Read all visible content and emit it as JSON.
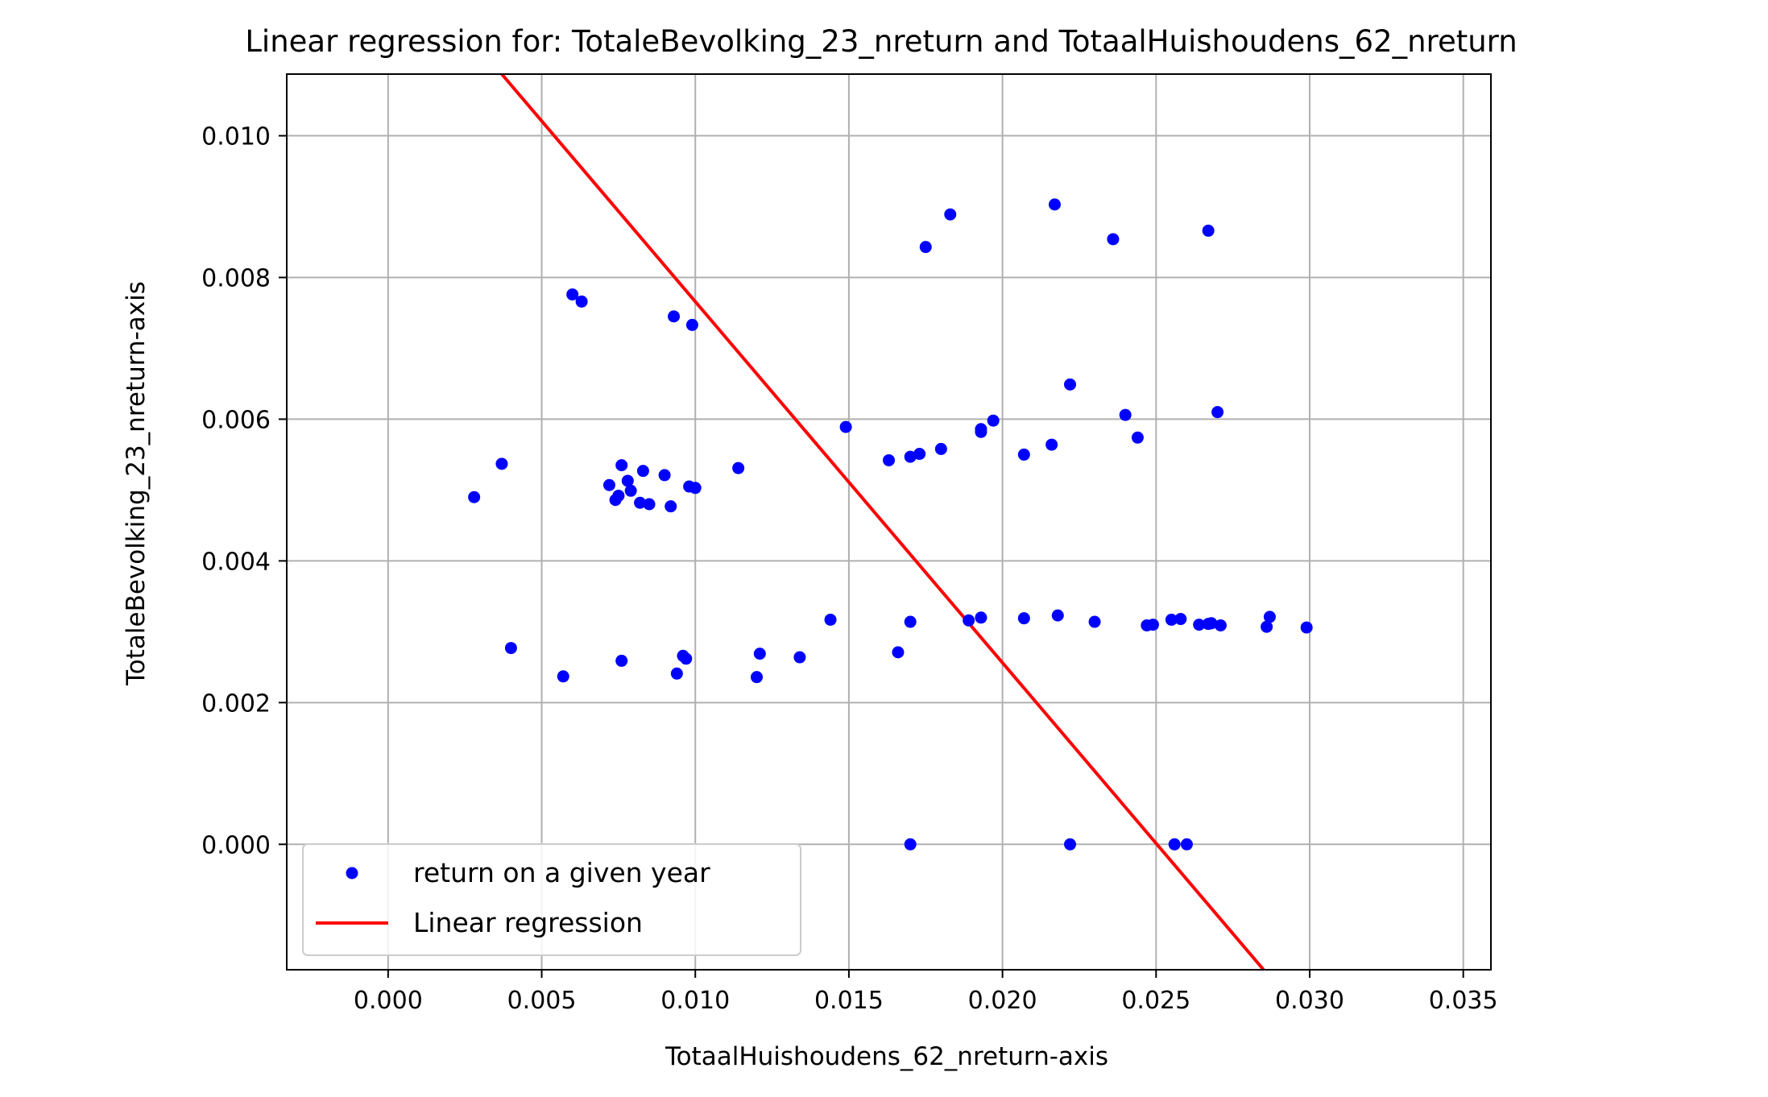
{
  "chart_data": {
    "type": "scatter",
    "title": "Linear regression for: TotaleBevolking_23_nreturn and TotaalHuishoudens_62_nreturn",
    "xlabel": "TotaalHuishoudens_62_nreturn-axis",
    "ylabel": "TotaleBevolking_23_nreturn-axis",
    "xlim": [
      -0.0033,
      0.0359
    ],
    "ylim": [
      -0.00177,
      0.01087
    ],
    "xticks": [
      0.0,
      0.005,
      0.01,
      0.015,
      0.02,
      0.025,
      0.03,
      0.035
    ],
    "xtick_labels": [
      "0.000",
      "0.005",
      "0.010",
      "0.015",
      "0.020",
      "0.025",
      "0.030",
      "0.035"
    ],
    "yticks": [
      0.0,
      0.002,
      0.004,
      0.006,
      0.008,
      0.01
    ],
    "ytick_labels": [
      "0.000",
      "0.002",
      "0.004",
      "0.006",
      "0.008",
      "0.010"
    ],
    "grid": true,
    "legend_position": "lower-left",
    "series": [
      {
        "name": "return on a given year",
        "kind": "scatter",
        "color": "#0000ff",
        "points": [
          [
            0.0028,
            0.0049
          ],
          [
            0.0037,
            0.00537
          ],
          [
            0.004,
            0.00277
          ],
          [
            0.0057,
            0.00237
          ],
          [
            0.006,
            0.00776
          ],
          [
            0.0063,
            0.00766
          ],
          [
            0.0072,
            0.00507
          ],
          [
            0.0074,
            0.00486
          ],
          [
            0.0075,
            0.00492
          ],
          [
            0.0076,
            0.00535
          ],
          [
            0.0076,
            0.00259
          ],
          [
            0.0078,
            0.00513
          ],
          [
            0.0079,
            0.00499
          ],
          [
            0.0082,
            0.00482
          ],
          [
            0.0083,
            0.00527
          ],
          [
            0.0085,
            0.0048
          ],
          [
            0.009,
            0.00521
          ],
          [
            0.0092,
            0.00477
          ],
          [
            0.0093,
            0.00745
          ],
          [
            0.0094,
            0.00241
          ],
          [
            0.0096,
            0.00266
          ],
          [
            0.0097,
            0.00262
          ],
          [
            0.0098,
            0.00505
          ],
          [
            0.0099,
            0.00733
          ],
          [
            0.01,
            0.00503
          ],
          [
            0.0114,
            0.00531
          ],
          [
            0.012,
            0.00236
          ],
          [
            0.0121,
            0.00269
          ],
          [
            0.0134,
            0.00264
          ],
          [
            0.0144,
            0.00317
          ],
          [
            0.0149,
            0.00589
          ],
          [
            0.0163,
            0.00542
          ],
          [
            0.0166,
            0.00271
          ],
          [
            0.017,
            0.00547
          ],
          [
            0.017,
            0.00314
          ],
          [
            0.017,
            0.0
          ],
          [
            0.0173,
            0.00551
          ],
          [
            0.0175,
            0.00843
          ],
          [
            0.018,
            0.00558
          ],
          [
            0.0183,
            0.00889
          ],
          [
            0.0189,
            0.00316
          ],
          [
            0.0193,
            0.00586
          ],
          [
            0.0193,
            0.00582
          ],
          [
            0.0193,
            0.0032
          ],
          [
            0.0197,
            0.00598
          ],
          [
            0.0207,
            0.0055
          ],
          [
            0.0207,
            0.00319
          ],
          [
            0.0216,
            0.00564
          ],
          [
            0.0217,
            0.00903
          ],
          [
            0.0218,
            0.00323
          ],
          [
            0.0222,
            0.00649
          ],
          [
            0.0222,
            0.0
          ],
          [
            0.023,
            0.00314
          ],
          [
            0.0236,
            0.00854
          ],
          [
            0.024,
            0.00606
          ],
          [
            0.0244,
            0.00574
          ],
          [
            0.0247,
            0.00309
          ],
          [
            0.0249,
            0.0031
          ],
          [
            0.0255,
            0.00317
          ],
          [
            0.0256,
            0.0
          ],
          [
            0.0258,
            0.00318
          ],
          [
            0.026,
            0.0
          ],
          [
            0.0264,
            0.0031
          ],
          [
            0.0267,
            0.00311
          ],
          [
            0.0267,
            0.00866
          ],
          [
            0.0268,
            0.00312
          ],
          [
            0.027,
            0.0061
          ],
          [
            0.0271,
            0.00309
          ],
          [
            0.0286,
            0.00307
          ],
          [
            0.0287,
            0.00321
          ],
          [
            0.0299,
            0.00306
          ]
        ]
      },
      {
        "name": "Linear regression",
        "kind": "line",
        "color": "#ff0000",
        "points": [
          [
            0.0037,
            0.01087
          ],
          [
            0.0285,
            -0.00177
          ]
        ]
      }
    ]
  }
}
